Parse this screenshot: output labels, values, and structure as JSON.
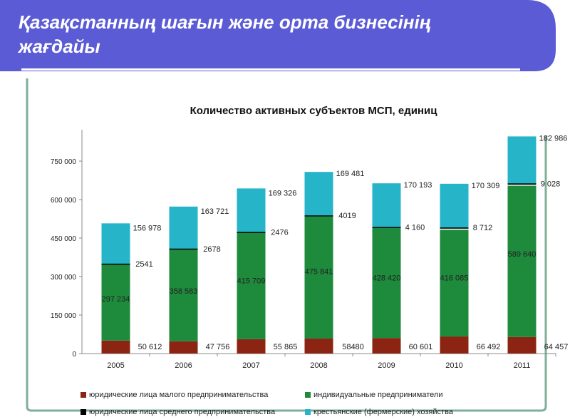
{
  "slide": {
    "title": "Қазақстанның шағын және орта бизнесінің жағдайы",
    "accent": "#5b5bd6"
  },
  "chart_data": {
    "type": "bar",
    "stacked": true,
    "title": "Количество активных субъектов МСП, единиц",
    "categories": [
      "2005",
      "2006",
      "2007",
      "2008",
      "2009",
      "2010",
      "2011"
    ],
    "ylim": [
      0,
      850000
    ],
    "yticks": [
      0,
      150000,
      300000,
      450000,
      600000,
      750000
    ],
    "ytick_labels": [
      "0",
      "150 000",
      "300 000",
      "450 000",
      "600 000",
      "750 000"
    ],
    "grid": false,
    "legend_position": "bottom",
    "series": [
      {
        "name": "юридические лица малого предпринимательства",
        "color": "#8b2412",
        "values": [
          50612,
          47756,
          55865,
          58480,
          60601,
          66492,
          64457
        ],
        "labels": [
          "50 612",
          "47 756",
          "55 865",
          "58480",
          "60 601",
          "66 492",
          "64 457"
        ]
      },
      {
        "name": "индивидуальные предприниматели",
        "color": "#1e8a3c",
        "values": [
          297234,
          358583,
          415709,
          475841,
          428420,
          416085,
          589640
        ],
        "labels": [
          "297 234",
          "358 583",
          "415 709",
          "475 841",
          "428 420",
          "416 085",
          "589 640"
        ]
      },
      {
        "name": "юридические лица среднего предпринимательства",
        "color": "#000000",
        "values": [
          2541,
          2678,
          2476,
          4019,
          4160,
          8712,
          9028
        ],
        "labels": [
          "2541",
          "2678",
          "2476",
          "4019",
          "4 160",
          "8 712",
          "9 028"
        ]
      },
      {
        "name": "крестьянские (фермерские) хозяйства",
        "color": "#25b4c8",
        "values": [
          156978,
          163721,
          169326,
          169481,
          170193,
          170309,
          182986
        ],
        "labels": [
          "156 978",
          "163 721",
          "169 326",
          "169 481",
          "170 193",
          "170 309",
          "182 986"
        ]
      }
    ]
  }
}
